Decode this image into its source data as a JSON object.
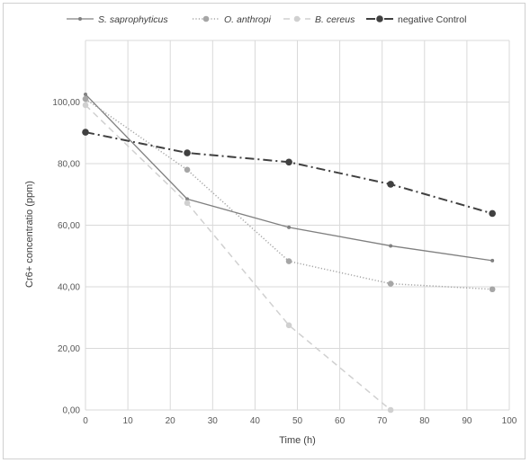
{
  "chart_data": {
    "type": "line",
    "title": "",
    "xlabel": "Time (h)",
    "ylabel": "Cr6+ concentratio (ppm)",
    "xlim": [
      0,
      100
    ],
    "ylim": [
      0,
      120
    ],
    "x_ticks": [
      "0",
      "10",
      "20",
      "30",
      "40",
      "50",
      "60",
      "70",
      "80",
      "90",
      "100"
    ],
    "y_ticks": [
      "0,00",
      "20,00",
      "40,00",
      "60,00",
      "80,00",
      "100,00"
    ],
    "grid": true,
    "legend_position": "top",
    "series": [
      {
        "name": "S. saprophyticus",
        "italic": true,
        "color": "#808080",
        "line_style": "solid",
        "x": [
          0,
          24,
          48,
          72,
          96
        ],
        "y": [
          102.5,
          68.5,
          59.3,
          53.3,
          48.5
        ]
      },
      {
        "name": "O. anthropi",
        "italic": true,
        "color": "#a6a6a6",
        "line_style": "dotted",
        "x": [
          0,
          24,
          48,
          72,
          96
        ],
        "y": [
          101,
          78,
          48.3,
          41,
          39.2
        ]
      },
      {
        "name": "B. cereus",
        "italic": true,
        "color": "#d0d0d0",
        "line_style": "dashed",
        "x": [
          0,
          24,
          48,
          72
        ],
        "y": [
          99,
          67.2,
          27.5,
          0
        ]
      },
      {
        "name": "negative Control",
        "italic": false,
        "color": "#404040",
        "line_style": "dash-dot",
        "x": [
          0,
          24,
          48,
          72,
          96
        ],
        "y": [
          90.2,
          83.5,
          80.5,
          73.3,
          63.8
        ]
      }
    ]
  }
}
